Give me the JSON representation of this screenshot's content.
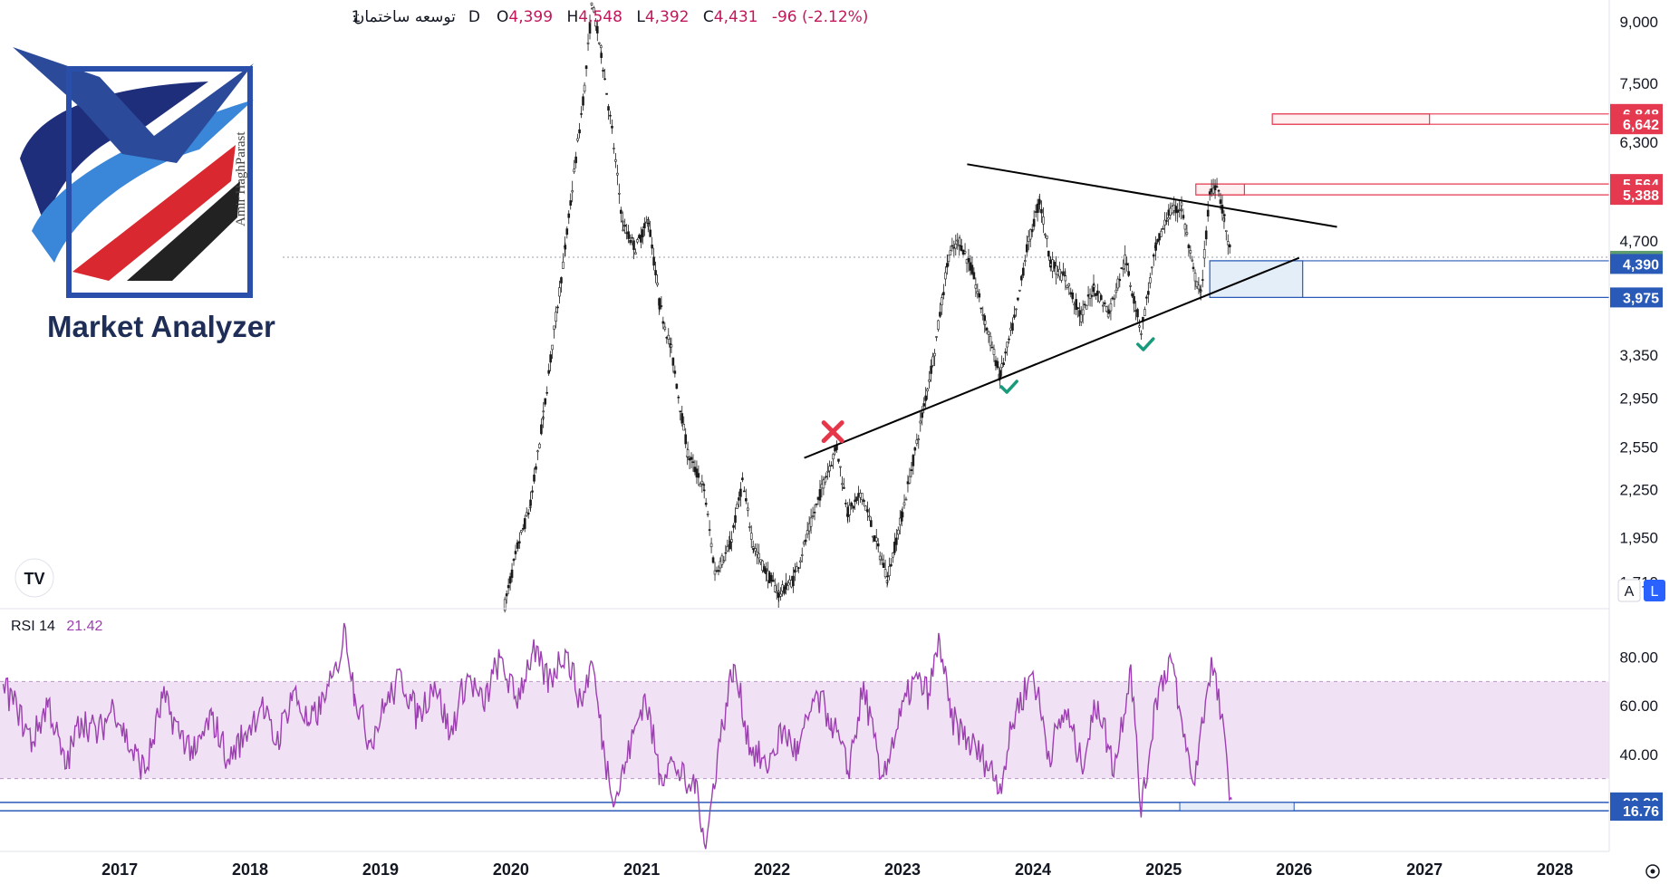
{
  "legend": {
    "symbol": "توسعه ساختمان",
    "separator": "·",
    "timeframe": "1D",
    "open_label": "O",
    "open": "4,399",
    "high_label": "H",
    "high": "4,548",
    "low_label": "L",
    "low": "4,392",
    "close_label": "C",
    "close": "4,431",
    "change": "-96 (-2.12%)"
  },
  "logo": {
    "text": "Market Analyzer",
    "signature": "Amir HaghParast"
  },
  "widgets": {
    "tv_logo": "TV",
    "auto_button": "A",
    "log_button": "L"
  },
  "colors": {
    "candle": "#1a1a1a",
    "trendline": "#000000",
    "resistance": "#e53950",
    "support": "#2a5ab8",
    "last_price": "#5e9e6e",
    "rsi_line": "#9c3fb0",
    "rsi_band": "#f0e2f4",
    "check": "#1a9a7c",
    "cross": "#e5364a"
  },
  "chart_data": [
    {
      "type": "candlestick",
      "y_scale": "log",
      "ylim": [
        1580,
        9600
      ],
      "x_range": [
        "2016-02",
        "2028-06"
      ],
      "y_ticks": [
        "9,000",
        "7,500",
        "6,300",
        "4,700",
        "3,350",
        "2,950",
        "2,550",
        "2,250",
        "1,950",
        "1,710"
      ],
      "y_tick_values": [
        9000,
        7500,
        6300,
        4700,
        3350,
        2950,
        2550,
        2250,
        1950,
        1710
      ],
      "price_tags": [
        {
          "label": "6,848",
          "value": 6848,
          "kind": "resistance"
        },
        {
          "label": "6,642",
          "value": 6642,
          "kind": "resistance"
        },
        {
          "label": "5,564",
          "value": 5564,
          "kind": "resistance"
        },
        {
          "label": "5,388",
          "value": 5388,
          "kind": "resistance"
        },
        {
          "label": "4,431",
          "value": 4431,
          "kind": "last"
        },
        {
          "label": "4,390",
          "value": 4390,
          "kind": "support"
        },
        {
          "label": "3,975",
          "value": 3975,
          "kind": "support"
        }
      ],
      "price_path": [
        [
          "2019-12-15",
          1600
        ],
        [
          "2020-01-20",
          1900
        ],
        [
          "2020-02-25",
          2150
        ],
        [
          "2020-04-01",
          2800
        ],
        [
          "2020-05-01",
          3600
        ],
        [
          "2020-06-01",
          4600
        ],
        [
          "2020-07-01",
          6000
        ],
        [
          "2020-07-25",
          7400
        ],
        [
          "2020-08-15",
          9500
        ],
        [
          "2020-09-10",
          8200
        ],
        [
          "2020-10-10",
          6500
        ],
        [
          "2020-11-10",
          4900
        ],
        [
          "2020-12-15",
          4600
        ],
        [
          "2021-01-20",
          5000
        ],
        [
          "2021-02-20",
          3900
        ],
        [
          "2021-03-25",
          3400
        ],
        [
          "2021-05-10",
          2500
        ],
        [
          "2021-06-25",
          2250
        ],
        [
          "2021-07-25",
          1760
        ],
        [
          "2021-09-05",
          1900
        ],
        [
          "2021-10-10",
          2300
        ],
        [
          "2021-11-10",
          1900
        ],
        [
          "2021-12-10",
          1780
        ],
        [
          "2022-01-20",
          1650
        ],
        [
          "2022-03-01",
          1720
        ],
        [
          "2022-04-15",
          2000
        ],
        [
          "2022-06-01",
          2350
        ],
        [
          "2022-07-01",
          2550
        ],
        [
          "2022-08-01",
          2100
        ],
        [
          "2022-09-10",
          2220
        ],
        [
          "2022-10-15",
          1950
        ],
        [
          "2022-11-20",
          1730
        ],
        [
          "2023-01-01",
          2100
        ],
        [
          "2023-02-15",
          2650
        ],
        [
          "2023-04-01",
          3400
        ],
        [
          "2023-05-10",
          4500
        ],
        [
          "2023-06-10",
          4700
        ],
        [
          "2023-07-15",
          4300
        ],
        [
          "2023-08-20",
          3700
        ],
        [
          "2023-10-01",
          3150
        ],
        [
          "2023-11-15",
          3800
        ],
        [
          "2023-12-15",
          4600
        ],
        [
          "2024-01-20",
          5300
        ],
        [
          "2024-02-20",
          4400
        ],
        [
          "2024-04-01",
          4200
        ],
        [
          "2024-05-15",
          3750
        ],
        [
          "2024-06-20",
          4100
        ],
        [
          "2024-08-01",
          3800
        ],
        [
          "2024-09-15",
          4450
        ],
        [
          "2024-10-30",
          3600
        ],
        [
          "2024-12-10",
          4600
        ],
        [
          "2025-01-15",
          5100
        ],
        [
          "2025-02-20",
          5200
        ],
        [
          "2025-03-25",
          4300
        ],
        [
          "2025-04-15",
          4000
        ],
        [
          "2025-05-10",
          5400
        ],
        [
          "2025-05-30",
          5600
        ],
        [
          "2025-06-20",
          5000
        ],
        [
          "2025-07-10",
          4431
        ]
      ],
      "trendlines": [
        {
          "name": "upper",
          "from": [
            "2023-07-01",
            5900
          ],
          "to": [
            "2026-05-01",
            4900
          ]
        },
        {
          "name": "lower",
          "from": [
            "2022-04-01",
            2470
          ],
          "to": [
            "2026-01-15",
            4470
          ]
        }
      ],
      "boxes": [
        {
          "name": "upper-resistance-zone",
          "from": "2025-11-01",
          "to": "2027-01-15",
          "top": 6848,
          "bottom": 6642,
          "kind": "resistance"
        },
        {
          "name": "mid-resistance-zone",
          "from": "2025-04-01",
          "to": "2025-08-15",
          "top": 5564,
          "bottom": 5388,
          "kind": "resistance"
        },
        {
          "name": "support-zone",
          "from": "2025-05-10",
          "to": "2026-01-25",
          "top": 4431,
          "bottom": 3975,
          "kind": "support"
        }
      ],
      "marks": [
        {
          "kind": "cross",
          "x": "2022-06-20",
          "y": 2670
        },
        {
          "kind": "check",
          "x": "2023-10-25",
          "y": 3050
        },
        {
          "kind": "check",
          "x": "2024-11-10",
          "y": 3460
        }
      ]
    },
    {
      "type": "line",
      "title": "RSI 14",
      "value": "21.42",
      "ylim": [
        0,
        100
      ],
      "y_ticks": [
        "80.00",
        "60.00",
        "40.00"
      ],
      "y_tick_values": [
        80,
        60,
        40
      ],
      "band": [
        30,
        70
      ],
      "levels": [
        {
          "label": "20.20",
          "value": 20.2
        },
        {
          "label": "16.76",
          "value": 16.76
        }
      ],
      "box": {
        "from": "2025-02-15",
        "to": "2026-01-01",
        "top": 20.2,
        "bottom": 16.76
      },
      "rsi_path": [
        [
          "2016-02-10",
          69
        ],
        [
          "2016-03-20",
          58
        ],
        [
          "2016-05-01",
          45
        ],
        [
          "2016-06-15",
          62
        ],
        [
          "2016-08-01",
          34
        ],
        [
          "2016-09-15",
          55
        ],
        [
          "2016-11-01",
          48
        ],
        [
          "2016-12-15",
          60
        ],
        [
          "2017-02-01",
          42
        ],
        [
          "2017-03-15",
          33
        ],
        [
          "2017-05-01",
          63
        ],
        [
          "2017-06-15",
          50
        ],
        [
          "2017-08-01",
          40
        ],
        [
          "2017-09-15",
          56
        ],
        [
          "2017-11-01",
          38
        ],
        [
          "2017-12-15",
          48
        ],
        [
          "2018-02-01",
          60
        ],
        [
          "2018-03-15",
          44
        ],
        [
          "2018-05-01",
          66
        ],
        [
          "2018-06-15",
          52
        ],
        [
          "2018-08-01",
          63
        ],
        [
          "2018-09-01",
          75
        ],
        [
          "2018-09-25",
          92
        ],
        [
          "2018-10-20",
          65
        ],
        [
          "2018-12-01",
          45
        ],
        [
          "2019-01-15",
          60
        ],
        [
          "2019-03-01",
          72
        ],
        [
          "2019-04-15",
          55
        ],
        [
          "2019-06-01",
          70
        ],
        [
          "2019-07-15",
          48
        ],
        [
          "2019-09-01",
          73
        ],
        [
          "2019-10-15",
          60
        ],
        [
          "2019-12-01",
          80
        ],
        [
          "2020-01-15",
          62
        ],
        [
          "2020-03-01",
          82
        ],
        [
          "2020-04-15",
          70
        ],
        [
          "2020-06-01",
          83
        ],
        [
          "2020-07-15",
          62
        ],
        [
          "2020-08-15",
          78
        ],
        [
          "2020-09-20",
          38
        ],
        [
          "2020-10-20",
          22
        ],
        [
          "2020-12-01",
          43
        ],
        [
          "2021-01-10",
          65
        ],
        [
          "2021-02-20",
          32
        ],
        [
          "2021-04-01",
          37
        ],
        [
          "2021-05-10",
          26
        ],
        [
          "2021-06-01",
          30
        ],
        [
          "2021-06-30",
          2
        ],
        [
          "2021-08-01",
          40
        ],
        [
          "2021-09-15",
          77
        ],
        [
          "2021-11-01",
          43
        ],
        [
          "2021-12-15",
          35
        ],
        [
          "2022-02-01",
          50
        ],
        [
          "2022-03-15",
          40
        ],
        [
          "2022-05-01",
          64
        ],
        [
          "2022-06-15",
          55
        ],
        [
          "2022-08-01",
          33
        ],
        [
          "2022-09-15",
          68
        ],
        [
          "2022-11-01",
          30
        ],
        [
          "2022-12-15",
          50
        ],
        [
          "2023-02-01",
          71
        ],
        [
          "2023-03-15",
          65
        ],
        [
          "2023-04-15",
          87
        ],
        [
          "2023-05-15",
          55
        ],
        [
          "2023-07-01",
          46
        ],
        [
          "2023-08-15",
          38
        ],
        [
          "2023-10-01",
          28
        ],
        [
          "2023-11-15",
          58
        ],
        [
          "2024-01-01",
          74
        ],
        [
          "2024-02-15",
          40
        ],
        [
          "2024-04-01",
          58
        ],
        [
          "2024-05-15",
          36
        ],
        [
          "2024-07-01",
          62
        ],
        [
          "2024-08-15",
          33
        ],
        [
          "2024-10-01",
          77
        ],
        [
          "2024-10-30",
          14
        ],
        [
          "2024-12-10",
          63
        ],
        [
          "2025-01-20",
          80
        ],
        [
          "2025-02-25",
          47
        ],
        [
          "2025-03-25",
          28
        ],
        [
          "2025-04-20",
          53
        ],
        [
          "2025-05-15",
          80
        ],
        [
          "2025-06-10",
          55
        ],
        [
          "2025-07-10",
          21.42
        ]
      ]
    }
  ],
  "x_axis": {
    "years": [
      "2017",
      "2018",
      "2019",
      "2020",
      "2021",
      "2022",
      "2023",
      "2024",
      "2025",
      "2026",
      "2027",
      "2028"
    ]
  }
}
